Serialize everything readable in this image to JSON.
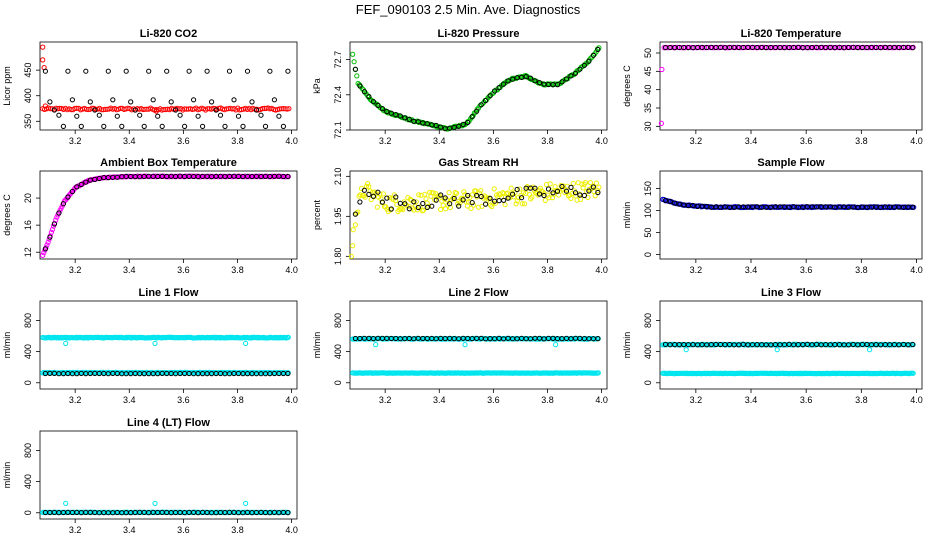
{
  "page": {
    "main_title": "FEF_090103  2.5 Min. Ave. Diagnostics"
  },
  "chart_data": [
    {
      "id": "co2",
      "type": "scatter",
      "title": "Li-820 CO2",
      "xlabel": "",
      "ylabel": "Licor ppm",
      "xlim": [
        3.07,
        4.02
      ],
      "ylim": [
        333,
        505
      ],
      "xticks": [
        3.2,
        3.4,
        3.6,
        3.8,
        4.0
      ],
      "xticklabels": [
        "3.2",
        "3.4",
        "3.6",
        "3.8",
        "4.0"
      ],
      "yticks": [
        350,
        400,
        450
      ],
      "yticklabels": [
        "350",
        "400",
        "450"
      ],
      "series": [
        {
          "name": "co2_red",
          "color": "#ff0000",
          "mode": "dense",
          "start": 3.08,
          "end": 3.99,
          "step": 0.007,
          "base": 374,
          "noise": 2,
          "points": [
            [
              3.08,
              495
            ],
            [
              3.08,
              470
            ],
            [
              3.085,
              455
            ],
            [
              3.09,
              380
            ],
            [
              3.5,
              370
            ]
          ]
        },
        {
          "name": "co2_black",
          "color": "#000000",
          "mode": "pattern",
          "start": 3.09,
          "end": 3.99,
          "step": 0.0166,
          "pattern": [
            448,
            388,
            372,
            362,
            340,
            448,
            392,
            360,
            340
          ]
        }
      ]
    },
    {
      "id": "press",
      "type": "line",
      "title": "Li-820 Pressure",
      "xlabel": "",
      "ylabel": "kPa",
      "xlim": [
        3.07,
        4.02
      ],
      "ylim": [
        72.1,
        72.85
      ],
      "xticks": [
        3.2,
        3.4,
        3.6,
        3.8,
        4.0
      ],
      "xticklabels": [
        "3.2",
        "3.4",
        "3.6",
        "3.8",
        "4.0"
      ],
      "yticks": [
        72.1,
        72.4,
        72.7
      ],
      "yticklabels": [
        "72.1",
        "72.4",
        "72.7"
      ],
      "series": [
        {
          "name": "press_green",
          "color": "#00bb00",
          "mode": "curve",
          "start": 3.08,
          "end": 3.99,
          "step": 0.005,
          "noise": 0.006,
          "curve": [
            [
              3.08,
              72.74
            ],
            [
              3.1,
              72.5
            ],
            [
              3.15,
              72.35
            ],
            [
              3.2,
              72.26
            ],
            [
              3.3,
              72.18
            ],
            [
              3.38,
              72.14
            ],
            [
              3.43,
              72.11
            ],
            [
              3.5,
              72.15
            ],
            [
              3.55,
              72.3
            ],
            [
              3.6,
              72.42
            ],
            [
              3.66,
              72.53
            ],
            [
              3.72,
              72.56
            ],
            [
              3.78,
              72.49
            ],
            [
              3.84,
              72.49
            ],
            [
              3.9,
              72.58
            ],
            [
              3.95,
              72.68
            ],
            [
              3.99,
              72.8
            ]
          ]
        },
        {
          "name": "press_black",
          "color": "#000000",
          "mode": "curve",
          "start": 3.09,
          "end": 3.99,
          "step": 0.0166,
          "noise": 0.004,
          "curve": [
            [
              3.08,
              72.74
            ],
            [
              3.1,
              72.5
            ],
            [
              3.15,
              72.35
            ],
            [
              3.2,
              72.26
            ],
            [
              3.3,
              72.18
            ],
            [
              3.38,
              72.14
            ],
            [
              3.43,
              72.11
            ],
            [
              3.5,
              72.15
            ],
            [
              3.55,
              72.3
            ],
            [
              3.6,
              72.42
            ],
            [
              3.66,
              72.53
            ],
            [
              3.72,
              72.56
            ],
            [
              3.78,
              72.49
            ],
            [
              3.84,
              72.49
            ],
            [
              3.9,
              72.58
            ],
            [
              3.95,
              72.68
            ],
            [
              3.99,
              72.8
            ]
          ]
        }
      ]
    },
    {
      "id": "temp",
      "type": "scatter",
      "title": "Li-820 Temperature",
      "xlabel": "",
      "ylabel": "degrees C",
      "xlim": [
        3.07,
        4.02
      ],
      "ylim": [
        29,
        53
      ],
      "xticks": [
        3.2,
        3.4,
        3.6,
        3.8,
        4.0
      ],
      "xticklabels": [
        "3.2",
        "3.4",
        "3.6",
        "3.8",
        "4.0"
      ],
      "yticks": [
        30,
        35,
        40,
        45,
        50
      ],
      "yticklabels": [
        "30",
        "35",
        "40",
        "45",
        "50"
      ],
      "series": [
        {
          "name": "temp_magenta",
          "color": "#ff00ff",
          "mode": "dense",
          "start": 3.085,
          "end": 3.99,
          "step": 0.007,
          "base": 51.5,
          "noise": 0.04,
          "points": [
            [
              3.075,
              30.8
            ],
            [
              3.077,
              45.5
            ]
          ]
        },
        {
          "name": "temp_black",
          "color": "#000000",
          "mode": "dense",
          "start": 3.09,
          "end": 3.99,
          "step": 0.0166,
          "base": 51.5,
          "noise": 0.03
        }
      ]
    },
    {
      "id": "amb",
      "type": "line",
      "title": "Ambient Box Temperature",
      "xlabel": "",
      "ylabel": "degrees C",
      "xlim": [
        3.07,
        4.02
      ],
      "ylim": [
        11,
        24
      ],
      "xticks": [
        3.2,
        3.4,
        3.6,
        3.8,
        4.0
      ],
      "xticklabels": [
        "3.2",
        "3.4",
        "3.6",
        "3.8",
        "4.0"
      ],
      "yticks": [
        12,
        16,
        20
      ],
      "yticklabels": [
        "12",
        "16",
        "20"
      ],
      "series": [
        {
          "name": "amb_magenta",
          "color": "#ff00ff",
          "mode": "curve",
          "start": 3.08,
          "end": 3.99,
          "step": 0.004,
          "noise": 0.05,
          "curve": [
            [
              3.08,
              11.5
            ],
            [
              3.1,
              13.5
            ],
            [
              3.13,
              17.0
            ],
            [
              3.16,
              19.5
            ],
            [
              3.2,
              21.5
            ],
            [
              3.25,
              22.6
            ],
            [
              3.3,
              23.0
            ],
            [
              3.4,
              23.2
            ],
            [
              3.99,
              23.2
            ]
          ]
        },
        {
          "name": "amb_black",
          "color": "#000000",
          "mode": "curve",
          "start": 3.09,
          "end": 3.99,
          "step": 0.0166,
          "noise": 0.03,
          "curve": [
            [
              3.08,
              11.5
            ],
            [
              3.1,
              13.5
            ],
            [
              3.13,
              17.0
            ],
            [
              3.16,
              19.5
            ],
            [
              3.2,
              21.5
            ],
            [
              3.25,
              22.6
            ],
            [
              3.3,
              23.0
            ],
            [
              3.4,
              23.2
            ],
            [
              3.99,
              23.2
            ]
          ]
        }
      ]
    },
    {
      "id": "rh",
      "type": "scatter",
      "title": "Gas Stream RH",
      "xlabel": "",
      "ylabel": "percent",
      "xlim": [
        3.07,
        4.02
      ],
      "ylim": [
        1.79,
        2.12
      ],
      "xticks": [
        3.2,
        3.4,
        3.6,
        3.8,
        4.0
      ],
      "xticklabels": [
        "3.2",
        "3.4",
        "3.6",
        "3.8",
        "4.0"
      ],
      "yticks": [
        1.8,
        1.95,
        2.1
      ],
      "yticklabels": [
        "1.80",
        "1.95",
        "2.10"
      ],
      "series": [
        {
          "name": "rh_yellow",
          "color": "#eeee00",
          "mode": "dense",
          "start": 3.09,
          "end": 3.99,
          "step": 0.0045,
          "noise": 0.035,
          "curve": [
            [
              3.09,
              1.95
            ],
            [
              3.12,
              2.05
            ],
            [
              3.2,
              2.0
            ],
            [
              3.5,
              2.01
            ],
            [
              3.8,
              2.04
            ],
            [
              3.99,
              2.05
            ]
          ],
          "points": [
            [
              3.075,
              1.8
            ],
            [
              3.08,
              1.84
            ],
            [
              3.082,
              1.9
            ]
          ]
        },
        {
          "name": "rh_black",
          "color": "#000000",
          "mode": "dense",
          "start": 3.09,
          "end": 3.99,
          "step": 0.0166,
          "noise": 0.025,
          "curve": [
            [
              3.09,
              1.95
            ],
            [
              3.12,
              2.07
            ],
            [
              3.2,
              2.0
            ],
            [
              3.5,
              2.01
            ],
            [
              3.8,
              2.04
            ],
            [
              3.99,
              2.05
            ]
          ]
        }
      ]
    },
    {
      "id": "sflow",
      "type": "line",
      "title": "Sample Flow",
      "xlabel": "",
      "ylabel": "ml/min",
      "xlim": [
        3.07,
        4.02
      ],
      "ylim": [
        -10,
        190
      ],
      "xticks": [
        3.2,
        3.4,
        3.6,
        3.8,
        4.0
      ],
      "xticklabels": [
        "3.2",
        "3.4",
        "3.6",
        "3.8",
        "4.0"
      ],
      "yticks": [
        0,
        50,
        100,
        150
      ],
      "yticklabels": [
        "0",
        "50",
        "100",
        "150"
      ],
      "series": [
        {
          "name": "sflow_blue",
          "color": "#0000cc",
          "mode": "curve",
          "start": 3.08,
          "end": 3.99,
          "step": 0.005,
          "noise": 1,
          "curve": [
            [
              3.08,
              125
            ],
            [
              3.15,
              113
            ],
            [
              3.25,
              108
            ],
            [
              3.99,
              108
            ]
          ]
        },
        {
          "name": "sflow_black",
          "color": "#000000",
          "mode": "curve",
          "start": 3.09,
          "end": 3.99,
          "step": 0.0166,
          "noise": 0.8,
          "curve": [
            [
              3.08,
              125
            ],
            [
              3.15,
              113
            ],
            [
              3.25,
              108
            ],
            [
              3.99,
              108
            ]
          ]
        }
      ]
    },
    {
      "id": "l1",
      "type": "scatter",
      "title": "Line 1 Flow",
      "xlabel": "",
      "ylabel": "ml/min",
      "xlim": [
        3.07,
        4.02
      ],
      "ylim": [
        -80,
        1050
      ],
      "xticks": [
        3.2,
        3.4,
        3.6,
        3.8,
        4.0
      ],
      "xticklabels": [
        "3.2",
        "3.4",
        "3.6",
        "3.8",
        "4.0"
      ],
      "yticks": [
        0,
        400,
        800
      ],
      "yticklabels": [
        "0",
        "400",
        "800"
      ],
      "series": [
        {
          "name": "l1_cyan_high",
          "color": "#00e5ee",
          "mode": "dense",
          "start": 3.08,
          "end": 3.99,
          "step": 0.004,
          "base": 580,
          "noise": 5,
          "points": [
            [
              3.165,
              505
            ],
            [
              3.495,
              505
            ],
            [
              3.83,
              505
            ]
          ]
        },
        {
          "name": "l1_cyan_low",
          "color": "#00e5ee",
          "mode": "dense",
          "start": 3.08,
          "end": 3.99,
          "step": 0.004,
          "base": 130,
          "noise": 3
        },
        {
          "name": "l1_black",
          "color": "#000000",
          "mode": "dense",
          "start": 3.09,
          "end": 3.99,
          "step": 0.0166,
          "base": 118,
          "noise": 2
        }
      ]
    },
    {
      "id": "l2",
      "type": "scatter",
      "title": "Line 2 Flow",
      "xlabel": "",
      "ylabel": "ml/min",
      "xlim": [
        3.07,
        4.02
      ],
      "ylim": [
        -80,
        1050
      ],
      "xticks": [
        3.2,
        3.4,
        3.6,
        3.8,
        4.0
      ],
      "xticklabels": [
        "3.2",
        "3.4",
        "3.6",
        "3.8",
        "4.0"
      ],
      "yticks": [
        0,
        400,
        800
      ],
      "yticklabels": [
        "0",
        "400",
        "800"
      ],
      "series": [
        {
          "name": "l2_cyan_low",
          "color": "#00e5ee",
          "mode": "dense",
          "start": 3.08,
          "end": 3.99,
          "step": 0.004,
          "base": 125,
          "noise": 3
        },
        {
          "name": "l2_cyan_high",
          "color": "#00e5ee",
          "mode": "dense",
          "start": 3.08,
          "end": 3.99,
          "step": 0.004,
          "base": 565,
          "noise": 5,
          "points": [
            [
              3.165,
              490
            ],
            [
              3.495,
              490
            ],
            [
              3.83,
              490
            ]
          ]
        },
        {
          "name": "l2_black",
          "color": "#000000",
          "mode": "dense",
          "start": 3.09,
          "end": 3.99,
          "step": 0.0166,
          "base": 568,
          "noise": 3
        }
      ]
    },
    {
      "id": "l3",
      "type": "scatter",
      "title": "Line 3 Flow",
      "xlabel": "",
      "ylabel": "ml/min",
      "xlim": [
        3.07,
        4.02
      ],
      "ylim": [
        -80,
        1050
      ],
      "xticks": [
        3.2,
        3.4,
        3.6,
        3.8,
        4.0
      ],
      "xticklabels": [
        "3.2",
        "3.4",
        "3.6",
        "3.8",
        "4.0"
      ],
      "yticks": [
        0,
        400,
        800
      ],
      "yticklabels": [
        "0",
        "400",
        "800"
      ],
      "series": [
        {
          "name": "l3_cyan_low",
          "color": "#00e5ee",
          "mode": "dense",
          "start": 3.08,
          "end": 3.99,
          "step": 0.004,
          "base": 120,
          "noise": 3
        },
        {
          "name": "l3_cyan_high",
          "color": "#00e5ee",
          "mode": "dense",
          "start": 3.08,
          "end": 3.99,
          "step": 0.004,
          "base": 490,
          "noise": 5,
          "points": [
            [
              3.165,
              425
            ],
            [
              3.495,
              425
            ],
            [
              3.83,
              425
            ]
          ]
        },
        {
          "name": "l3_black",
          "color": "#000000",
          "mode": "dense",
          "start": 3.09,
          "end": 3.99,
          "step": 0.0166,
          "base": 490,
          "noise": 3
        }
      ]
    },
    {
      "id": "l4",
      "type": "scatter",
      "title": "Line 4 (LT) Flow",
      "xlabel": "",
      "ylabel": "ml/min",
      "xlim": [
        3.07,
        4.02
      ],
      "ylim": [
        -80,
        1050
      ],
      "xticks": [
        3.2,
        3.4,
        3.6,
        3.8,
        4.0
      ],
      "xticklabels": [
        "3.2",
        "3.4",
        "3.6",
        "3.8",
        "4.0"
      ],
      "yticks": [
        0,
        400,
        800
      ],
      "yticklabels": [
        "0",
        "400",
        "800"
      ],
      "series": [
        {
          "name": "l4_cyan",
          "color": "#00e5ee",
          "mode": "dense",
          "start": 3.08,
          "end": 3.99,
          "step": 0.004,
          "base": 5,
          "noise": 2,
          "points": [
            [
              3.165,
              120
            ],
            [
              3.495,
              120
            ],
            [
              3.83,
              120
            ]
          ]
        },
        {
          "name": "l4_black",
          "color": "#000000",
          "mode": "dense",
          "start": 3.09,
          "end": 3.99,
          "step": 0.0166,
          "base": 3,
          "noise": 2
        }
      ]
    }
  ]
}
